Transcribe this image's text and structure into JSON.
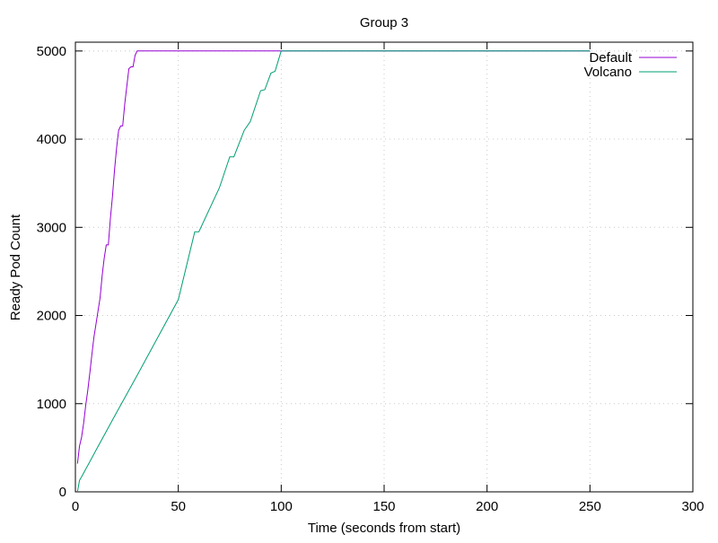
{
  "chart_data": {
    "type": "line",
    "title": "Group 3",
    "xlabel": "Time (seconds from start)",
    "ylabel": "Ready Pod Count",
    "xlim": [
      0,
      300
    ],
    "ylim": [
      0,
      5100
    ],
    "xticks": [
      0,
      50,
      100,
      150,
      200,
      250,
      300
    ],
    "yticks": [
      0,
      1000,
      2000,
      3000,
      4000,
      5000
    ],
    "grid": true,
    "legend_position": "top-right",
    "series": [
      {
        "name": "Default",
        "color": "#9400d3",
        "points": [
          [
            1,
            320
          ],
          [
            2,
            520
          ],
          [
            3,
            620
          ],
          [
            4,
            780
          ],
          [
            5,
            980
          ],
          [
            6,
            1150
          ],
          [
            7,
            1350
          ],
          [
            8,
            1550
          ],
          [
            9,
            1750
          ],
          [
            10,
            1900
          ],
          [
            11,
            2050
          ],
          [
            12,
            2200
          ],
          [
            13,
            2450
          ],
          [
            14,
            2650
          ],
          [
            15,
            2800
          ],
          [
            16,
            2800
          ],
          [
            17,
            3100
          ],
          [
            18,
            3350
          ],
          [
            19,
            3650
          ],
          [
            20,
            3900
          ],
          [
            21,
            4100
          ],
          [
            22,
            4150
          ],
          [
            23,
            4150
          ],
          [
            24,
            4400
          ],
          [
            25,
            4600
          ],
          [
            26,
            4800
          ],
          [
            27,
            4820
          ],
          [
            28,
            4820
          ],
          [
            29,
            4950
          ],
          [
            30,
            5000
          ],
          [
            250,
            5000
          ]
        ]
      },
      {
        "name": "Volcano",
        "color": "#009e73",
        "points": [
          [
            1,
            0
          ],
          [
            2,
            130
          ],
          [
            3,
            170
          ],
          [
            10,
            470
          ],
          [
            20,
            900
          ],
          [
            30,
            1320
          ],
          [
            40,
            1750
          ],
          [
            50,
            2180
          ],
          [
            58,
            2950
          ],
          [
            60,
            2950
          ],
          [
            70,
            3450
          ],
          [
            75,
            3800
          ],
          [
            77,
            3800
          ],
          [
            82,
            4100
          ],
          [
            85,
            4200
          ],
          [
            90,
            4550
          ],
          [
            92,
            4560
          ],
          [
            95,
            4750
          ],
          [
            97,
            4770
          ],
          [
            100,
            5000
          ],
          [
            250,
            5000
          ]
        ]
      }
    ]
  }
}
